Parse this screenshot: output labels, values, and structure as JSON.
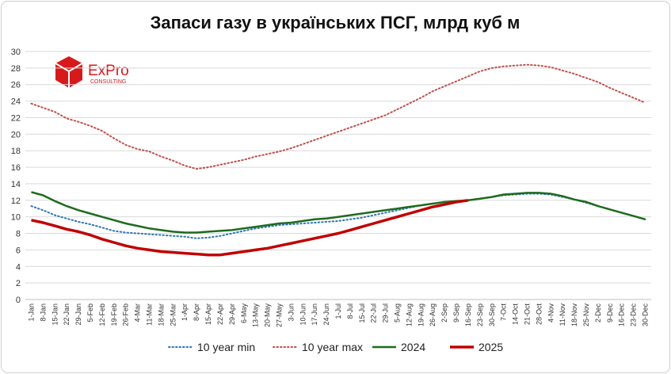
{
  "chart_data": {
    "type": "line",
    "title": "Запаси газу в українських ПСГ, млрд куб м",
    "logo": {
      "name": "ExPro",
      "subtitle": "CONSULTING"
    },
    "categories": [
      "1-Jan",
      "8-Jan",
      "15-Jan",
      "22-Jan",
      "29-Jan",
      "5-Feb",
      "12-Feb",
      "19-Feb",
      "26-Feb",
      "4-Mar",
      "11-Mar",
      "18-Mar",
      "25-Mar",
      "1-Apr",
      "8-Apr",
      "15-Apr",
      "22-Apr",
      "29-Apr",
      "6-May",
      "13-May",
      "20-May",
      "27-May",
      "3-Jun",
      "10-Jun",
      "17-Jun",
      "24-Jun",
      "1-Jul",
      "8-Jul",
      "15-Jul",
      "22-Jul",
      "29-Jul",
      "5-Aug",
      "12-Aug",
      "19-Aug",
      "26-Aug",
      "2-Sep",
      "9-Sep",
      "16-Sep",
      "23-Sep",
      "30-Sep",
      "7-Oct",
      "14-Oct",
      "21-Oct",
      "28-Oct",
      "4-Nov",
      "11-Nov",
      "18-Nov",
      "25-Nov",
      "2-Dec",
      "9-Dec",
      "16-Dec",
      "23-Dec",
      "30-Dec"
    ],
    "series": [
      {
        "name": "10 year min",
        "color": "#2e75b6",
        "style": "dotted",
        "values": [
          11.3,
          10.8,
          10.2,
          9.8,
          9.4,
          9.1,
          8.7,
          8.3,
          8.1,
          8.0,
          7.9,
          7.8,
          7.7,
          7.6,
          7.4,
          7.5,
          7.7,
          8.0,
          8.3,
          8.6,
          8.8,
          9.0,
          9.1,
          9.2,
          9.3,
          9.4,
          9.5,
          9.7,
          9.9,
          10.2,
          10.5,
          10.8,
          11.1,
          11.4,
          11.6,
          11.8,
          11.9,
          12.0,
          12.2,
          12.4,
          12.6,
          12.7,
          12.8,
          12.8,
          12.7,
          12.4,
          12.1,
          11.7,
          11.3,
          10.9,
          10.5,
          10.1,
          9.7
        ]
      },
      {
        "name": "10 year max",
        "color": "#c0504d",
        "style": "dotted",
        "values": [
          23.7,
          23.2,
          22.7,
          21.9,
          21.5,
          21.0,
          20.4,
          19.5,
          18.7,
          18.2,
          17.9,
          17.3,
          16.8,
          16.2,
          15.8,
          16.0,
          16.3,
          16.6,
          16.9,
          17.3,
          17.6,
          17.9,
          18.3,
          18.8,
          19.3,
          19.8,
          20.3,
          20.8,
          21.3,
          21.8,
          22.3,
          23.0,
          23.7,
          24.4,
          25.2,
          25.8,
          26.4,
          27.0,
          27.6,
          28.0,
          28.2,
          28.3,
          28.4,
          28.3,
          28.1,
          27.7,
          27.3,
          26.8,
          26.3,
          25.6,
          25.0,
          24.4,
          23.8
        ]
      },
      {
        "name": "2024",
        "color": "#1e6b1e",
        "style": "solid",
        "values": [
          13.0,
          12.6,
          11.9,
          11.3,
          10.8,
          10.4,
          10.0,
          9.6,
          9.2,
          8.9,
          8.6,
          8.4,
          8.2,
          8.1,
          8.1,
          8.2,
          8.3,
          8.4,
          8.6,
          8.8,
          9.0,
          9.2,
          9.3,
          9.5,
          9.7,
          9.8,
          10.0,
          10.2,
          10.4,
          10.6,
          10.8,
          11.0,
          11.2,
          11.4,
          11.6,
          11.8,
          11.9,
          12.0,
          12.2,
          12.4,
          12.7,
          12.8,
          12.9,
          12.9,
          12.8,
          12.5,
          12.1,
          11.8,
          11.3,
          10.9,
          10.5,
          10.1,
          9.7
        ]
      },
      {
        "name": "2025",
        "color": "#c00000",
        "style": "thick",
        "values": [
          9.6,
          9.3,
          8.9,
          8.5,
          8.2,
          7.8,
          7.3,
          6.9,
          6.5,
          6.2,
          6.0,
          5.8,
          5.7,
          5.6,
          5.5,
          5.4,
          5.4,
          5.6,
          5.8,
          6.0,
          6.2,
          6.5,
          6.8,
          7.1,
          7.4,
          7.7,
          8.0,
          8.4,
          8.8,
          9.2,
          9.6,
          10.0,
          10.4,
          10.8,
          11.2,
          11.5,
          11.8,
          12.0,
          null,
          null,
          null,
          null,
          null,
          null,
          null,
          null,
          null,
          null,
          null,
          null,
          null,
          null,
          null
        ]
      }
    ],
    "ylim": [
      0,
      30
    ],
    "yticks": [
      0,
      2,
      4,
      6,
      8,
      10,
      12,
      14,
      16,
      18,
      20,
      22,
      24,
      26,
      28,
      30
    ],
    "grid": true,
    "legend": "bottom"
  }
}
